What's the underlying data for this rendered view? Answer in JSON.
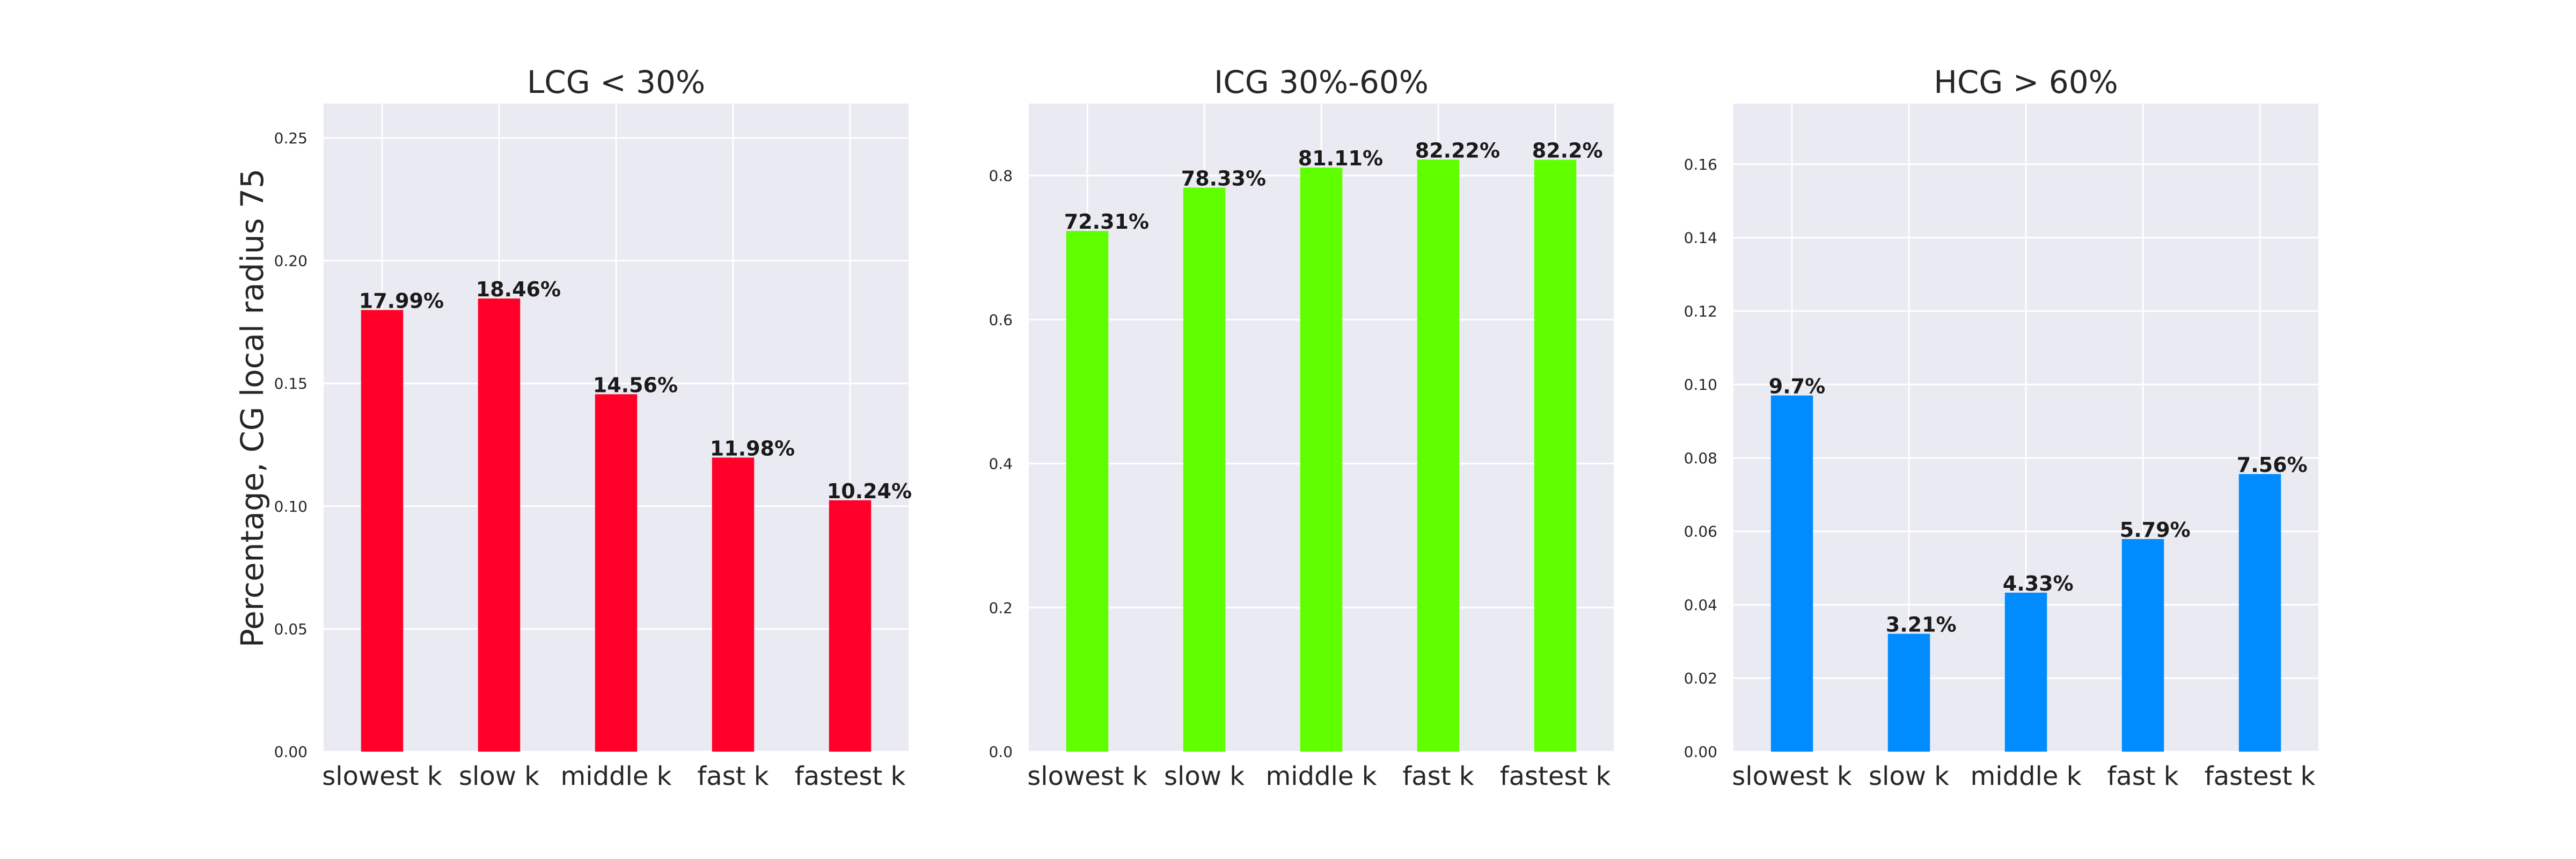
{
  "figure": {
    "ylabel": "Percentage, CG local radius 75"
  },
  "chart_data": [
    {
      "type": "bar",
      "title": "LCG < 30%",
      "categories": [
        "slowest k",
        "slow k",
        "middle k",
        "fast k",
        "fastest k"
      ],
      "values": [
        0.1799,
        0.1846,
        0.1456,
        0.1198,
        0.1024
      ],
      "value_labels": [
        "17.99%",
        "18.46%",
        "14.56%",
        "11.98%",
        "10.24%"
      ],
      "color": "#ff0028",
      "ylim": [
        0,
        0.264
      ],
      "yticks": [
        0.0,
        0.05,
        0.1,
        0.15,
        0.2,
        0.25
      ],
      "ytick_labels": [
        "0.00",
        "0.05",
        "0.10",
        "0.15",
        "0.20",
        "0.25"
      ],
      "ylabel": "Percentage, CG local radius 75",
      "grid": true
    },
    {
      "type": "bar",
      "title": "ICG 30%-60%",
      "categories": [
        "slowest k",
        "slow k",
        "middle k",
        "fast k",
        "fastest k"
      ],
      "values": [
        0.7231,
        0.7833,
        0.8111,
        0.8222,
        0.822
      ],
      "value_labels": [
        "72.31%",
        "78.33%",
        "81.11%",
        "82.22%",
        "82.2%"
      ],
      "color": "#5fff00",
      "ylim": [
        0,
        0.9
      ],
      "yticks": [
        0.0,
        0.2,
        0.4,
        0.6,
        0.8
      ],
      "ytick_labels": [
        "0.0",
        "0.2",
        "0.4",
        "0.6",
        "0.8"
      ],
      "grid": true
    },
    {
      "type": "bar",
      "title": "HCG > 60%",
      "categories": [
        "slowest k",
        "slow k",
        "middle k",
        "fast k",
        "fastest k"
      ],
      "values": [
        0.097,
        0.0321,
        0.0433,
        0.0579,
        0.0756
      ],
      "value_labels": [
        "9.7%",
        "3.21%",
        "4.33%",
        "5.79%",
        "7.56%"
      ],
      "color": "#008cff",
      "ylim": [
        0,
        0.1765
      ],
      "yticks": [
        0.0,
        0.02,
        0.04,
        0.06,
        0.08,
        0.1,
        0.12,
        0.14,
        0.16
      ],
      "ytick_labels": [
        "0.00",
        "0.02",
        "0.04",
        "0.06",
        "0.08",
        "0.10",
        "0.12",
        "0.14",
        "0.16"
      ],
      "grid": true
    }
  ]
}
